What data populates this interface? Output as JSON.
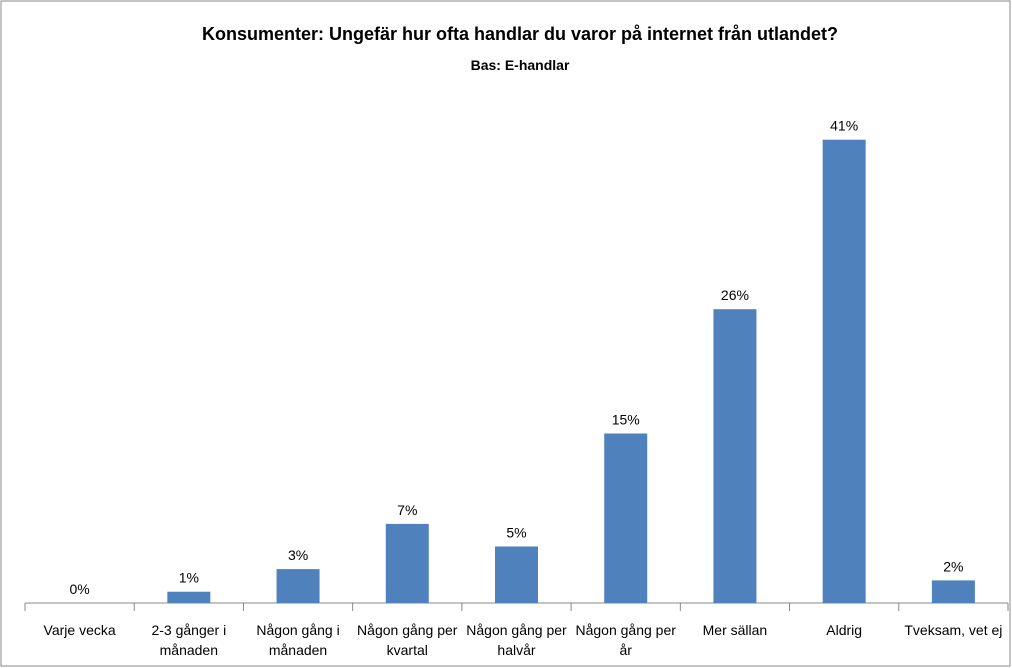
{
  "chart_data": {
    "type": "bar",
    "title": "Konsumenter: Ungefär hur ofta handlar du varor på internet från utlandet?",
    "subtitle": "Bas: E-handlar",
    "categories": [
      "Varje vecka",
      "2-3 gånger i månaden",
      "Någon gång i månaden",
      "Någon gång per kvartal",
      "Någon gång per halvår",
      "Någon gång per år",
      "Mer sällan",
      "Aldrig",
      "Tveksam, vet ej"
    ],
    "values": [
      0,
      1,
      3,
      7,
      5,
      15,
      26,
      41,
      2
    ],
    "value_labels": [
      "0%",
      "1%",
      "3%",
      "7%",
      "5%",
      "15%",
      "26%",
      "41%",
      "2%"
    ],
    "color": "#4f81bd"
  }
}
